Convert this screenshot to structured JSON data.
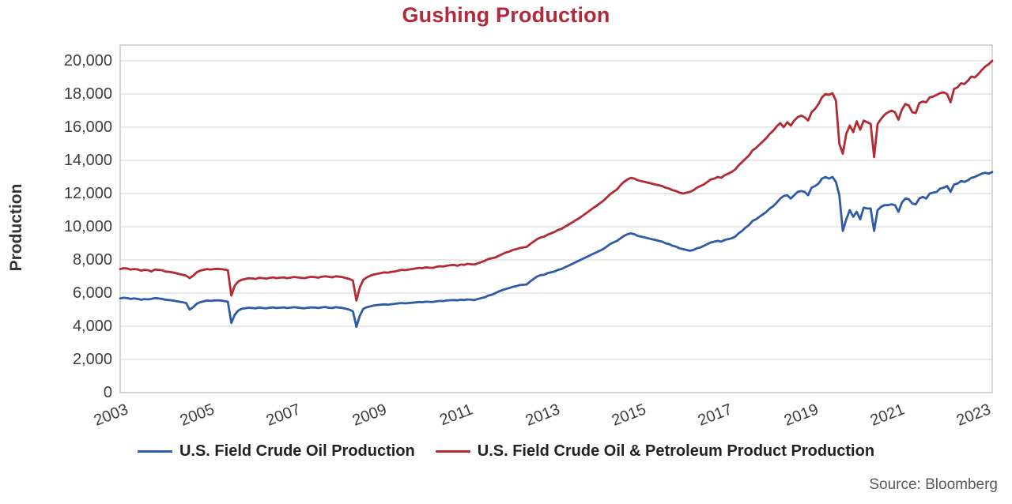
{
  "title": "Gushing Production",
  "source": "Source: Bloomberg",
  "colors": {
    "title": "#b2293a",
    "crude_line": "#2e5ba6",
    "crude_products_line": "#b22a33",
    "gridline": "#d9d9d9",
    "plot_border": "#c6c6c6"
  },
  "chart_data": {
    "type": "line",
    "title": "Gushing Production",
    "xlabel": "",
    "ylabel": "Production",
    "ylim": [
      0,
      20000
    ],
    "ytick_step": 2000,
    "ytick_labels": [
      "0",
      "2,000",
      "4,000",
      "6,000",
      "8,000",
      "10,000",
      "12,000",
      "14,000",
      "16,000",
      "18,000",
      "20,000"
    ],
    "xticks": [
      "2003",
      "2005",
      "2007",
      "2009",
      "2011",
      "2013",
      "2015",
      "2017",
      "2019",
      "2021",
      "2023"
    ],
    "x_start": 2003,
    "x_end": 2023,
    "frequency": "monthly",
    "grid": "horizontal",
    "legend_position": "bottom",
    "series": [
      {
        "name": "U.S. Field Crude Oil Production",
        "color": "#2e5ba6",
        "values": [
          5680,
          5720,
          5700,
          5650,
          5680,
          5650,
          5600,
          5640,
          5620,
          5650,
          5700,
          5680,
          5650,
          5600,
          5580,
          5550,
          5520,
          5480,
          5450,
          5400,
          5000,
          5150,
          5350,
          5450,
          5500,
          5550,
          5530,
          5550,
          5560,
          5550,
          5520,
          5480,
          4200,
          4700,
          4950,
          5050,
          5080,
          5120,
          5100,
          5080,
          5130,
          5100,
          5080,
          5120,
          5140,
          5100,
          5120,
          5140,
          5100,
          5120,
          5150,
          5130,
          5100,
          5080,
          5120,
          5140,
          5130,
          5100,
          5140,
          5160,
          5120,
          5100,
          5150,
          5130,
          5100,
          5050,
          5000,
          4900,
          3970,
          4650,
          5050,
          5150,
          5200,
          5250,
          5280,
          5300,
          5320,
          5300,
          5330,
          5350,
          5380,
          5400,
          5380,
          5400,
          5420,
          5440,
          5460,
          5450,
          5480,
          5470,
          5460,
          5500,
          5530,
          5520,
          5550,
          5570,
          5580,
          5560,
          5600,
          5580,
          5620,
          5600,
          5580,
          5650,
          5700,
          5750,
          5850,
          5900,
          6000,
          6100,
          6180,
          6250,
          6300,
          6380,
          6420,
          6480,
          6500,
          6520,
          6700,
          6850,
          7000,
          7080,
          7100,
          7200,
          7250,
          7300,
          7400,
          7450,
          7550,
          7650,
          7750,
          7850,
          7950,
          8050,
          8150,
          8250,
          8350,
          8450,
          8550,
          8650,
          8800,
          8950,
          9050,
          9150,
          9300,
          9450,
          9550,
          9600,
          9550,
          9450,
          9400,
          9350,
          9300,
          9250,
          9200,
          9150,
          9100,
          9000,
          8950,
          8850,
          8800,
          8700,
          8650,
          8600,
          8550,
          8600,
          8700,
          8750,
          8850,
          8950,
          9050,
          9100,
          9150,
          9100,
          9200,
          9250,
          9300,
          9400,
          9600,
          9750,
          9950,
          10100,
          10350,
          10450,
          10600,
          10750,
          10900,
          11100,
          11250,
          11450,
          11700,
          11850,
          11900,
          11700,
          11900,
          12100,
          12150,
          12100,
          11900,
          12350,
          12450,
          12600,
          12900,
          13000,
          12900,
          13000,
          12700,
          11900,
          9750,
          10450,
          11000,
          10600,
          10900,
          10450,
          11150,
          11100,
          11100,
          9750,
          11000,
          11200,
          11300,
          11300,
          11350,
          11300,
          10900,
          11450,
          11700,
          11650,
          11400,
          11350,
          11700,
          11800,
          11700,
          12000,
          12050,
          12100,
          12300,
          12350,
          12450,
          12100,
          12550,
          12600,
          12750,
          12700,
          12800,
          12950,
          13000,
          13100,
          13200,
          13250,
          13200,
          13300
        ]
      },
      {
        "name": "U.S. Field Crude Oil & Petroleum Product Production",
        "color": "#b22a33",
        "values": [
          7450,
          7500,
          7480,
          7420,
          7450,
          7430,
          7350,
          7400,
          7380,
          7300,
          7420,
          7400,
          7380,
          7300,
          7280,
          7250,
          7200,
          7150,
          7100,
          7050,
          6900,
          7050,
          7250,
          7350,
          7400,
          7450,
          7420,
          7450,
          7460,
          7450,
          7420,
          7380,
          5850,
          6450,
          6700,
          6800,
          6850,
          6900,
          6880,
          6850,
          6920,
          6900,
          6870,
          6920,
          6950,
          6900,
          6930,
          6950,
          6900,
          6930,
          6970,
          6950,
          6920,
          6900,
          6950,
          6980,
          6960,
          6930,
          6980,
          7010,
          6980,
          6950,
          7010,
          6990,
          6960,
          6900,
          6850,
          6750,
          5550,
          6350,
          6800,
          6950,
          7050,
          7120,
          7160,
          7200,
          7250,
          7230,
          7280,
          7300,
          7350,
          7400,
          7380,
          7420,
          7450,
          7480,
          7520,
          7500,
          7550,
          7530,
          7520,
          7580,
          7620,
          7600,
          7650,
          7680,
          7700,
          7650,
          7720,
          7700,
          7760,
          7740,
          7720,
          7800,
          7870,
          7950,
          8050,
          8100,
          8150,
          8250,
          8350,
          8450,
          8500,
          8600,
          8650,
          8720,
          8750,
          8780,
          8950,
          9100,
          9250,
          9350,
          9400,
          9520,
          9600,
          9680,
          9800,
          9870,
          10000,
          10120,
          10250,
          10380,
          10500,
          10650,
          10800,
          10950,
          11100,
          11250,
          11400,
          11550,
          11750,
          11950,
          12100,
          12250,
          12500,
          12700,
          12850,
          12950,
          12900,
          12800,
          12750,
          12700,
          12650,
          12600,
          12550,
          12500,
          12450,
          12350,
          12300,
          12200,
          12150,
          12050,
          12000,
          12050,
          12100,
          12200,
          12350,
          12450,
          12550,
          12700,
          12850,
          12900,
          13000,
          12950,
          13100,
          13200,
          13300,
          13450,
          13700,
          13900,
          14100,
          14300,
          14600,
          14750,
          14950,
          15150,
          15350,
          15600,
          15800,
          16050,
          16250,
          16000,
          16300,
          16100,
          16400,
          16600,
          16700,
          16600,
          16400,
          16900,
          17100,
          17400,
          17800,
          18000,
          17950,
          18050,
          17600,
          15000,
          14400,
          15600,
          16100,
          15700,
          16350,
          15850,
          16400,
          16300,
          16200,
          14200,
          16200,
          16500,
          16750,
          16900,
          17000,
          16900,
          16450,
          17050,
          17400,
          17300,
          16900,
          16850,
          17450,
          17550,
          17500,
          17800,
          17850,
          17950,
          18050,
          18100,
          18000,
          17500,
          18300,
          18400,
          18650,
          18600,
          18800,
          19050,
          19000,
          19200,
          19450,
          19650,
          19800,
          20000
        ]
      }
    ]
  }
}
